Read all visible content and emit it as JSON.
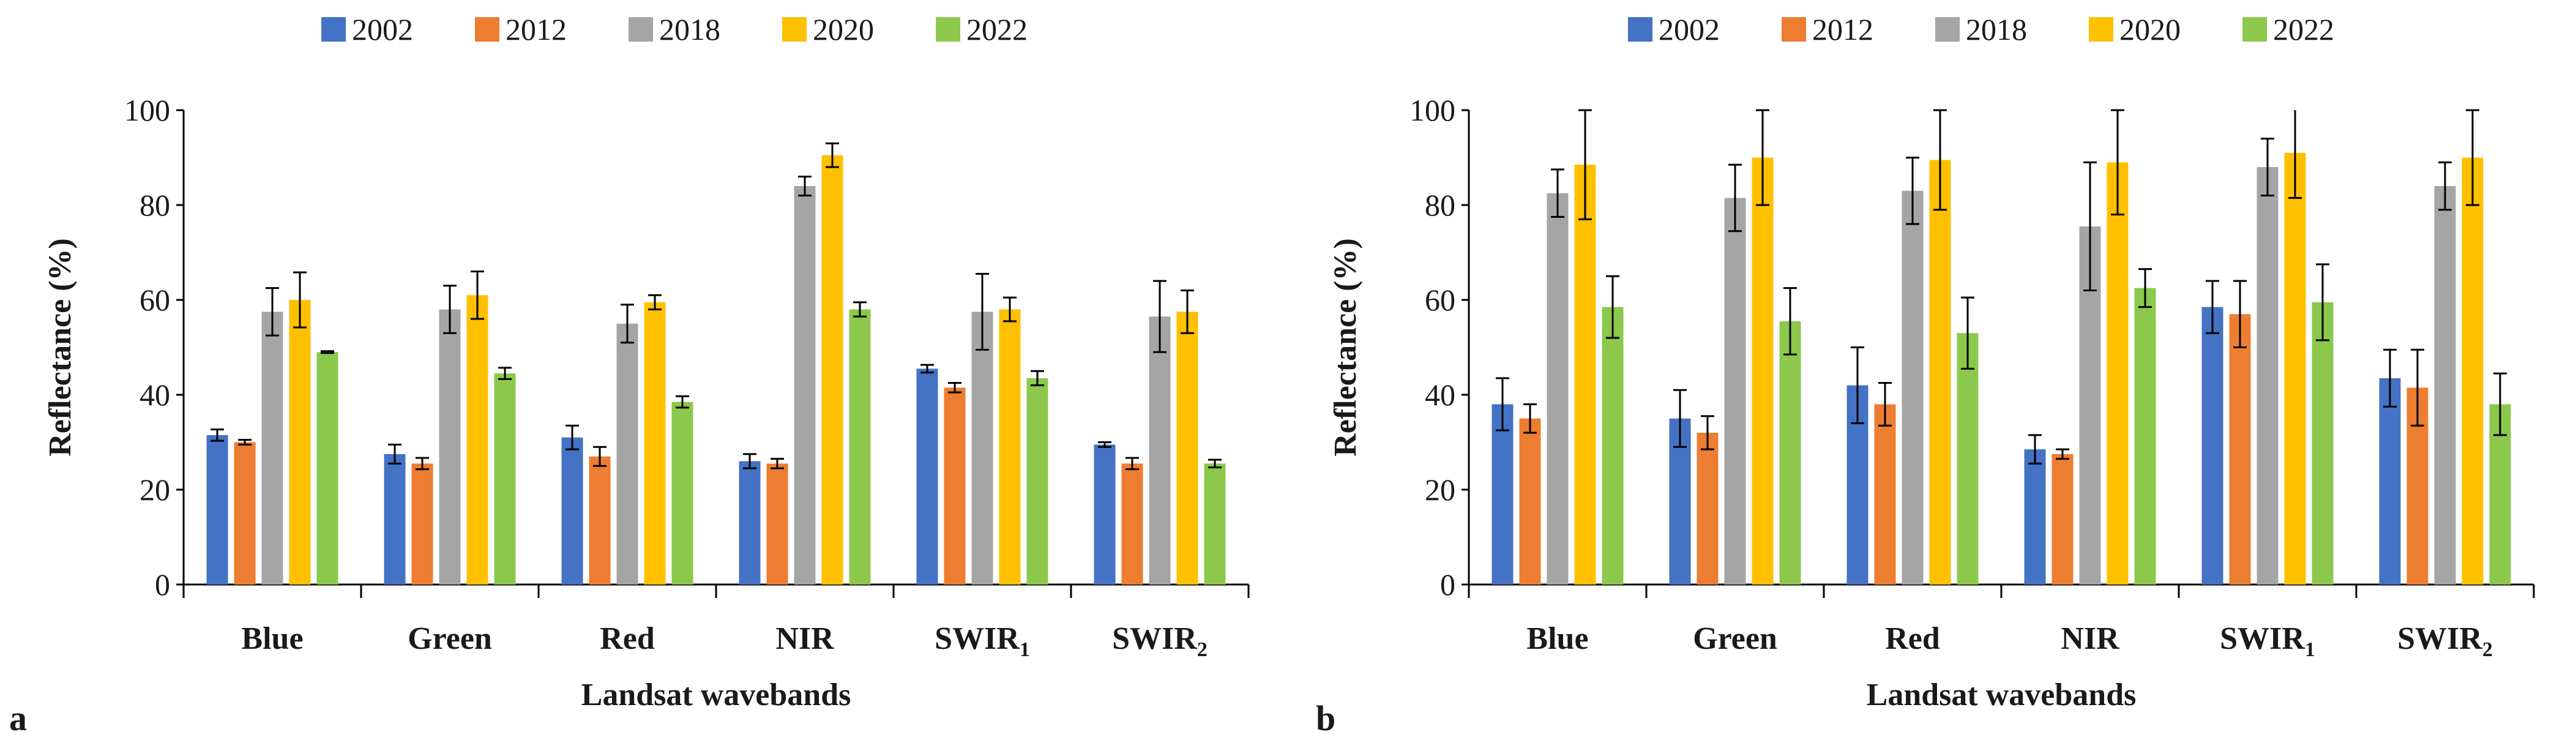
{
  "chart_data": [
    {
      "type": "bar",
      "panel_label": "a",
      "xlabel": "Landsat wavebands",
      "ylabel": "Reflectance (%)",
      "ylim": [
        0,
        100
      ],
      "yticks": [
        0,
        20,
        40,
        60,
        80,
        100
      ],
      "grid": false,
      "legend_position": "top-center",
      "categories": [
        {
          "base": "Blue",
          "sub": ""
        },
        {
          "base": "Green",
          "sub": ""
        },
        {
          "base": "Red",
          "sub": ""
        },
        {
          "base": "NIR",
          "sub": ""
        },
        {
          "base": "SWIR",
          "sub": "1"
        },
        {
          "base": "SWIR",
          "sub": "2"
        }
      ],
      "series": [
        {
          "name": "2002",
          "color": "#4472C4",
          "values": [
            31.5,
            27.5,
            31,
            26,
            45.5,
            29.5
          ],
          "errors": [
            1.2,
            2,
            2.5,
            1.5,
            0.8,
            0.5
          ]
        },
        {
          "name": "2012",
          "color": "#ED7D31",
          "values": [
            30,
            25.5,
            27,
            25.5,
            41.5,
            25.5
          ],
          "errors": [
            0.5,
            1.2,
            2,
            1,
            1,
            1.2
          ]
        },
        {
          "name": "2018",
          "color": "#A5A5A5",
          "values": [
            57.5,
            58,
            55,
            84,
            57.5,
            56.5
          ],
          "errors": [
            5,
            5,
            4,
            2,
            8,
            7.5
          ]
        },
        {
          "name": "2020",
          "color": "#FFC000",
          "values": [
            60,
            61,
            59.5,
            90.5,
            58,
            57.5
          ],
          "errors": [
            5.8,
            5,
            1.5,
            2.5,
            2.5,
            4.5
          ]
        },
        {
          "name": "2022",
          "color": "#8CC84B",
          "values": [
            49,
            44.5,
            38.5,
            58,
            43.5,
            25.5
          ],
          "errors": [
            0.2,
            1.2,
            1.2,
            1.5,
            1.5,
            0.8
          ]
        }
      ]
    },
    {
      "type": "bar",
      "panel_label": "b",
      "xlabel": "Landsat wavebands",
      "ylabel": "Reflectance (%)",
      "ylim": [
        0,
        100
      ],
      "yticks": [
        0,
        20,
        40,
        60,
        80,
        100
      ],
      "grid": false,
      "legend_position": "top-center",
      "categories": [
        {
          "base": "Blue",
          "sub": ""
        },
        {
          "base": "Green",
          "sub": ""
        },
        {
          "base": "Red",
          "sub": ""
        },
        {
          "base": "NIR",
          "sub": ""
        },
        {
          "base": "SWIR",
          "sub": "1"
        },
        {
          "base": "SWIR",
          "sub": "2"
        }
      ],
      "series": [
        {
          "name": "2002",
          "color": "#4472C4",
          "values": [
            38,
            35,
            42,
            28.5,
            58.5,
            43.5
          ],
          "errors": [
            5.5,
            6,
            8,
            3,
            5.5,
            6
          ]
        },
        {
          "name": "2012",
          "color": "#ED7D31",
          "values": [
            35,
            32,
            38,
            27.5,
            57,
            41.5
          ],
          "errors": [
            3,
            3.5,
            4.5,
            1,
            7,
            8
          ]
        },
        {
          "name": "2018",
          "color": "#A5A5A5",
          "values": [
            82.5,
            81.5,
            83,
            75.5,
            88,
            84
          ],
          "errors": [
            5,
            7,
            7,
            13.5,
            6,
            5
          ]
        },
        {
          "name": "2020",
          "color": "#FFC000",
          "values": [
            88.5,
            90,
            89.5,
            89,
            91,
            90
          ],
          "errors": [
            11.5,
            10,
            10.5,
            11,
            9.5,
            10
          ]
        },
        {
          "name": "2022",
          "color": "#8CC84B",
          "values": [
            58.5,
            55.5,
            53,
            62.5,
            59.5,
            38
          ],
          "errors": [
            6.5,
            7,
            7.5,
            4,
            8,
            6.5
          ]
        }
      ]
    }
  ]
}
